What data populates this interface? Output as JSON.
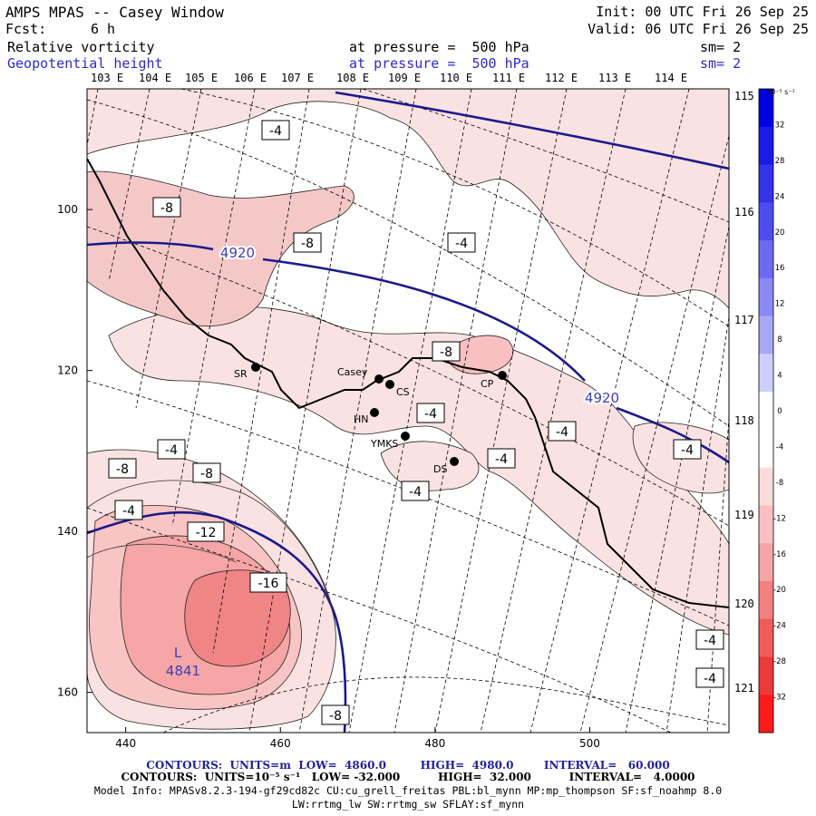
{
  "header": {
    "title": "AMPS MPAS -- Casey Window",
    "forecast_label": "Fcst:",
    "forecast_value": "6 h",
    "init": "Init: 00 UTC Fri 26 Sep 25",
    "valid": "Valid: 06 UTC Fri 26 Sep 25",
    "field1_name": "Relative vorticity",
    "field1_level": "at pressure =  500 hPa",
    "field1_smooth": "sm= 2",
    "field2_name": "Geopotential height",
    "field2_level": "at pressure =  500 hPa",
    "field2_smooth": "sm= 2"
  },
  "colors": {
    "height_contour": "#1a1a8c",
    "label_blue": "#3d3db8",
    "pos_vort": "#2020e0",
    "neg_vort": "#ff2020"
  },
  "axes": {
    "x_ticks": [
      "440",
      "460",
      "480",
      "500"
    ],
    "y_ticks": [
      "100",
      "120",
      "140",
      "160"
    ],
    "lon_labels_top": [
      "103 E",
      "104 E",
      "105 E",
      "106 E",
      "107 E",
      "108 E",
      "109 E",
      "110 E",
      "111 E",
      "112 E",
      "113 E",
      "114 E"
    ],
    "lon_labels_right": [
      "115 E",
      "116 E",
      "117 E",
      "118 E",
      "119 E",
      "120 E",
      "121 E"
    ]
  },
  "colorbar": {
    "unit": "10⁻⁵ s⁻¹",
    "ticks": [
      "32",
      "28",
      "24",
      "20",
      "16",
      "12",
      "8",
      "4",
      "0",
      "-4",
      "-8",
      "-12",
      "-16",
      "-20",
      "-24",
      "-28",
      "-32"
    ],
    "colors": [
      "#0000e0",
      "#1a1ae6",
      "#3333ea",
      "#4d4dee",
      "#6b6bf2",
      "#8a8af5",
      "#a8a8f8",
      "#cfcffb",
      "#ffffff",
      "#ffffff",
      "#fbdcdc",
      "#f8c0c0",
      "#f5a5a5",
      "#f28080",
      "#ef5c5c",
      "#ec3a3a",
      "#ff1a1a"
    ]
  },
  "stations": [
    "Casey",
    "CS",
    "CP",
    "SR",
    "HN",
    "YMKS",
    "DS"
  ],
  "vorticity_labels": [
    "-4",
    "-8",
    "-8",
    "-4",
    "-4",
    "-8",
    "-4",
    "-4",
    "-4",
    "-4",
    "-8",
    "-8",
    "-4",
    "-12",
    "-16",
    "-8",
    "-4",
    "-4",
    "-4"
  ],
  "height_labels": [
    "4920",
    "4920",
    "L",
    "4841"
  ],
  "chart_data": {
    "type": "contour",
    "title": "Relative vorticity / Geopotential height at 500 hPa",
    "xlim": [
      435,
      518
    ],
    "ylim": [
      165,
      85
    ],
    "height_contours": {
      "units": "m",
      "low": 4860.0,
      "high": 4980.0,
      "interval": 60.0
    },
    "vorticity_contours": {
      "units": "10⁻⁵ s⁻¹",
      "low": -32.0,
      "high": 32.0,
      "interval": 4.0
    },
    "low_center": {
      "label": "L",
      "value": 4841
    }
  },
  "footer": {
    "line1": "CONTOURS:  UNITS=m  LOW=  4860.0         HIGH=  4980.0        INTERVAL=   60.000",
    "line2": "CONTOURS:  UNITS=10⁻⁵ s⁻¹   LOW= -32.000          HIGH=  32.000          INTERVAL=   4.0000",
    "line3": "Model Info: MPASv8.2.3-194-gf29cd82c CU:cu_grell_freitas PBL:bl_mynn MP:mp_thompson SF:sf_noahmp 8.0",
    "line4": "LW:rrtmg_lw SW:rrtmg_sw SFLAY:sf_mynn"
  }
}
